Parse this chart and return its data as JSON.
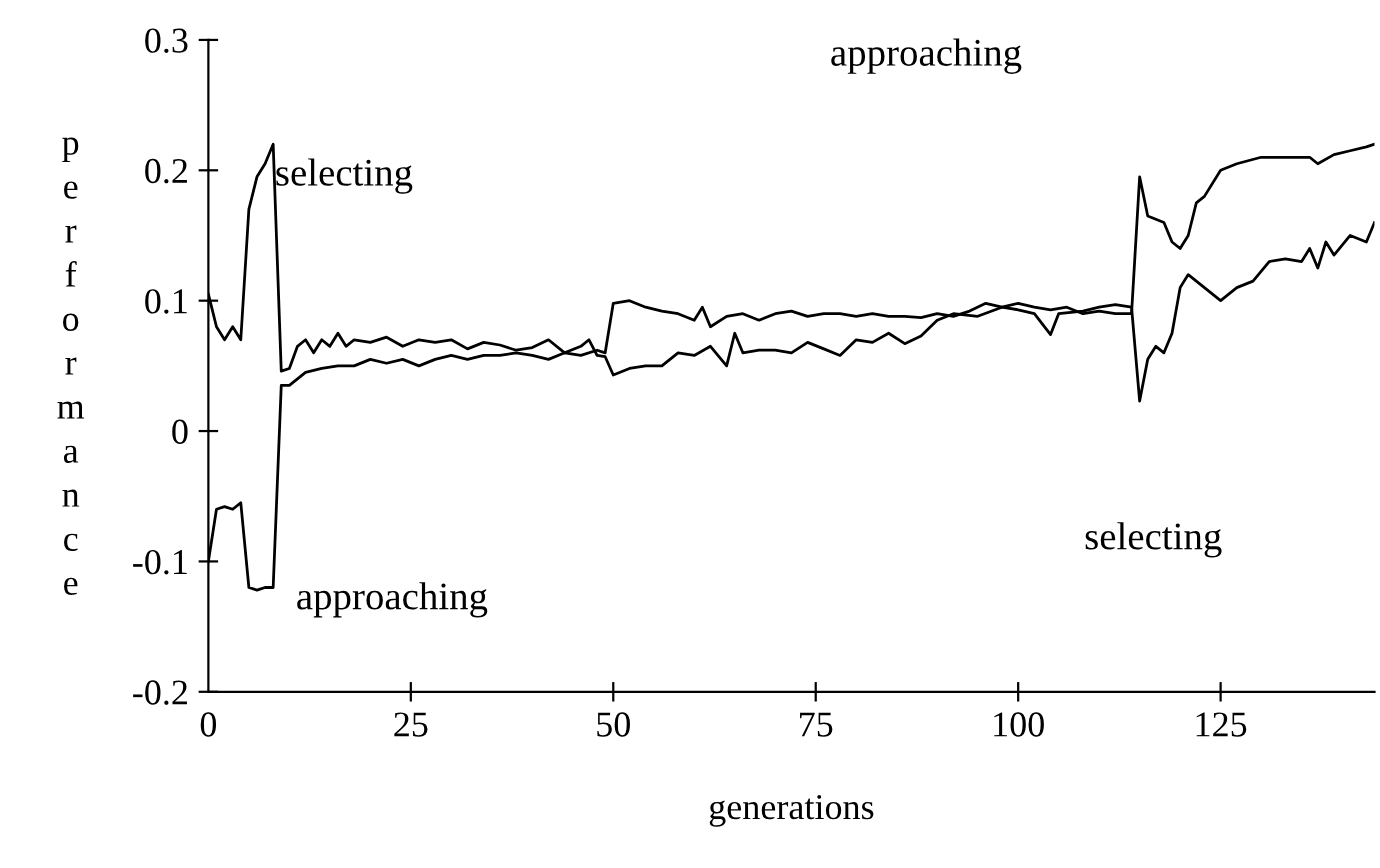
{
  "chart_data": {
    "type": "line",
    "xlabel": "generations",
    "ylabel": "performance",
    "xlim": [
      0,
      144
    ],
    "xticks": [
      0,
      25,
      50,
      75,
      100,
      125
    ],
    "ylim": [
      -0.2,
      0.3
    ],
    "yticks": [
      -0.2,
      -0.1,
      0,
      0.1,
      0.2,
      0.3
    ],
    "grid": false,
    "legend": false,
    "marker": "none",
    "line_style": "solid",
    "series": [
      {
        "color": "#000000",
        "x": [
          0,
          1,
          2,
          3,
          4,
          5,
          6,
          7,
          8,
          9,
          10,
          11,
          12,
          13,
          14,
          15,
          16,
          17,
          18,
          20,
          22,
          24,
          26,
          28,
          30,
          32,
          34,
          36,
          38,
          40,
          42,
          44,
          46,
          47,
          48,
          49,
          50,
          52,
          54,
          56,
          58,
          60,
          62,
          64,
          65,
          66,
          68,
          70,
          72,
          74,
          76,
          78,
          80,
          82,
          84,
          86,
          88,
          90,
          92,
          95,
          98,
          100,
          102,
          104,
          105,
          108,
          110,
          112,
          114,
          115,
          116,
          117,
          118,
          119,
          120,
          121,
          123,
          125,
          127,
          129,
          131,
          133,
          135,
          136,
          137,
          138,
          139,
          141,
          143,
          144
        ],
        "values": [
          0.105,
          0.08,
          0.07,
          0.08,
          0.07,
          0.17,
          0.195,
          0.205,
          0.22,
          0.046,
          0.048,
          0.065,
          0.07,
          0.06,
          0.07,
          0.065,
          0.075,
          0.065,
          0.07,
          0.068,
          0.072,
          0.065,
          0.07,
          0.068,
          0.07,
          0.063,
          0.068,
          0.066,
          0.062,
          0.064,
          0.07,
          0.06,
          0.065,
          0.07,
          0.058,
          0.057,
          0.043,
          0.048,
          0.05,
          0.05,
          0.06,
          0.058,
          0.065,
          0.05,
          0.075,
          0.06,
          0.062,
          0.062,
          0.06,
          0.068,
          0.063,
          0.058,
          0.07,
          0.068,
          0.075,
          0.067,
          0.073,
          0.085,
          0.09,
          0.088,
          0.095,
          0.093,
          0.09,
          0.074,
          0.09,
          0.092,
          0.095,
          0.097,
          0.095,
          0.023,
          0.055,
          0.065,
          0.06,
          0.075,
          0.11,
          0.12,
          0.11,
          0.1,
          0.11,
          0.115,
          0.13,
          0.132,
          0.13,
          0.14,
          0.125,
          0.145,
          0.135,
          0.15,
          0.145,
          0.16
        ]
      },
      {
        "color": "#000000",
        "x": [
          0,
          1,
          2,
          3,
          4,
          5,
          6,
          7,
          8,
          9,
          10,
          11,
          12,
          14,
          16,
          18,
          20,
          22,
          24,
          26,
          28,
          30,
          32,
          34,
          36,
          38,
          40,
          42,
          44,
          46,
          48,
          49,
          50,
          52,
          54,
          56,
          58,
          60,
          61,
          62,
          64,
          66,
          68,
          70,
          72,
          74,
          76,
          78,
          80,
          82,
          84,
          86,
          88,
          90,
          92,
          94,
          96,
          98,
          100,
          102,
          104,
          106,
          108,
          110,
          112,
          114,
          115,
          116,
          118,
          119,
          120,
          121,
          122,
          123,
          125,
          127,
          130,
          133,
          136,
          137,
          139,
          141,
          143,
          144
        ],
        "values": [
          -0.1,
          -0.06,
          -0.058,
          -0.06,
          -0.055,
          -0.12,
          -0.122,
          -0.12,
          -0.12,
          0.035,
          0.035,
          0.04,
          0.045,
          0.048,
          0.05,
          0.05,
          0.055,
          0.052,
          0.055,
          0.05,
          0.055,
          0.058,
          0.055,
          0.058,
          0.058,
          0.06,
          0.058,
          0.055,
          0.06,
          0.058,
          0.062,
          0.06,
          0.098,
          0.1,
          0.095,
          0.092,
          0.09,
          0.085,
          0.095,
          0.08,
          0.088,
          0.09,
          0.085,
          0.09,
          0.092,
          0.088,
          0.09,
          0.09,
          0.088,
          0.09,
          0.088,
          0.088,
          0.087,
          0.09,
          0.088,
          0.092,
          0.098,
          0.095,
          0.098,
          0.095,
          0.093,
          0.095,
          0.09,
          0.092,
          0.09,
          0.09,
          0.195,
          0.165,
          0.16,
          0.145,
          0.14,
          0.15,
          0.175,
          0.18,
          0.2,
          0.205,
          0.21,
          0.21,
          0.21,
          0.205,
          0.212,
          0.215,
          0.218,
          0.22
        ]
      }
    ],
    "annotations": [
      "selecting",
      "approaching",
      "approaching",
      "selecting"
    ]
  }
}
